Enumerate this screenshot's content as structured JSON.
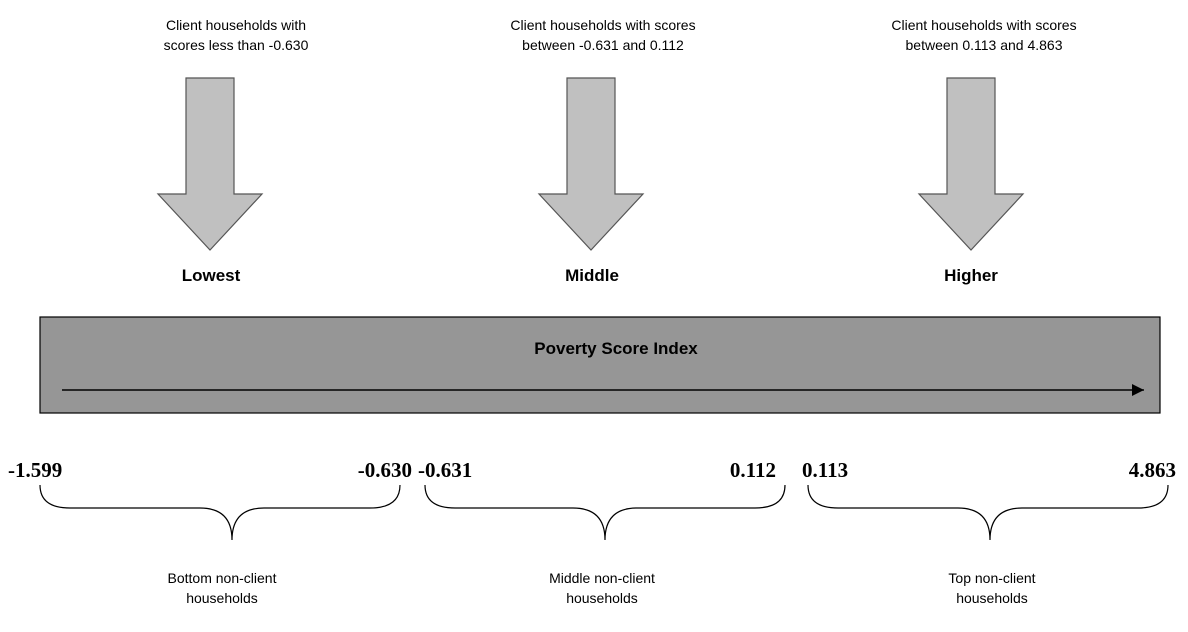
{
  "groups": [
    {
      "description": [
        "Client households with",
        "scores less than -0.630"
      ],
      "label": "Lowest",
      "range_min": "-1.599",
      "range_max": "-0.630",
      "bottom_label": [
        "Bottom non-client",
        "households"
      ]
    },
    {
      "description": [
        "Client households with scores",
        "between -0.631 and 0.112"
      ],
      "label": "Middle",
      "range_min": "-0.631",
      "range_max": "0.112",
      "bottom_label": [
        "Middle non-client",
        "households"
      ]
    },
    {
      "description": [
        "Client households with scores",
        "between 0.113 and 4.863"
      ],
      "label": "Higher",
      "range_min": "0.113",
      "range_max": "4.863",
      "bottom_label": [
        "Top non-client",
        "households"
      ]
    }
  ],
  "bar": {
    "title": "Poverty Score Index"
  }
}
